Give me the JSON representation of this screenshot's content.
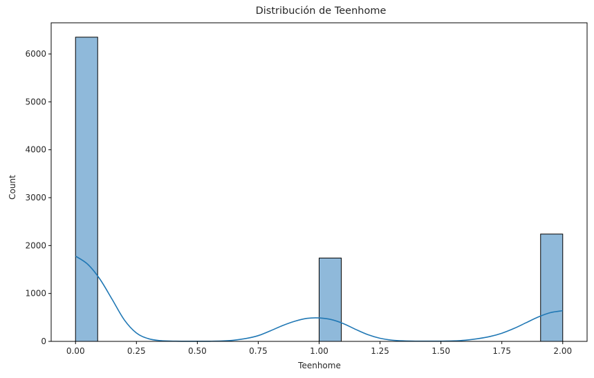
{
  "chart_data": {
    "type": "bar",
    "subtype": "histogram-with-kde",
    "title": "Distribución de Teenhome",
    "xlabel": "Teenhome",
    "ylabel": "Count",
    "xlim": [
      -0.1,
      2.1
    ],
    "ylim": [
      0,
      6650
    ],
    "xticks": [
      0.0,
      0.25,
      0.5,
      0.75,
      1.0,
      1.25,
      1.5,
      1.75,
      2.0
    ],
    "xtick_labels": [
      "0.00",
      "0.25",
      "0.50",
      "0.75",
      "1.00",
      "1.25",
      "1.50",
      "1.75",
      "2.00"
    ],
    "yticks": [
      0,
      1000,
      2000,
      3000,
      4000,
      5000,
      6000
    ],
    "ytick_labels": [
      "0",
      "1000",
      "2000",
      "3000",
      "4000",
      "5000",
      "6000"
    ],
    "bin_width": 0.0909,
    "bars": [
      {
        "x_start": 0.0,
        "x_end": 0.0909,
        "count": 6350
      },
      {
        "x_start": 1.0,
        "x_end": 1.0909,
        "count": 1740
      },
      {
        "x_start": 1.9091,
        "x_end": 2.0,
        "count": 2240
      }
    ],
    "kde": {
      "x": [
        0.0,
        0.05,
        0.1,
        0.15,
        0.2,
        0.25,
        0.3,
        0.35,
        0.4,
        0.45,
        0.5,
        0.55,
        0.6,
        0.65,
        0.7,
        0.75,
        0.8,
        0.85,
        0.9,
        0.95,
        1.0,
        1.05,
        1.1,
        1.15,
        1.2,
        1.25,
        1.3,
        1.35,
        1.4,
        1.45,
        1.5,
        1.55,
        1.6,
        1.65,
        1.7,
        1.75,
        1.8,
        1.85,
        1.9,
        1.95,
        2.0
      ],
      "y": [
        1780,
        1610,
        1300,
        880,
        450,
        175,
        55,
        15,
        5,
        3,
        2,
        3,
        8,
        25,
        60,
        120,
        220,
        330,
        420,
        480,
        490,
        455,
        370,
        250,
        140,
        65,
        25,
        10,
        5,
        4,
        5,
        10,
        25,
        55,
        100,
        170,
        270,
        390,
        510,
        600,
        640
      ]
    },
    "colors": {
      "bar_fill": "#8fb9da",
      "bar_edge": "#000000",
      "kde_line": "#1f77b4"
    },
    "grid": false,
    "legend": "none"
  }
}
